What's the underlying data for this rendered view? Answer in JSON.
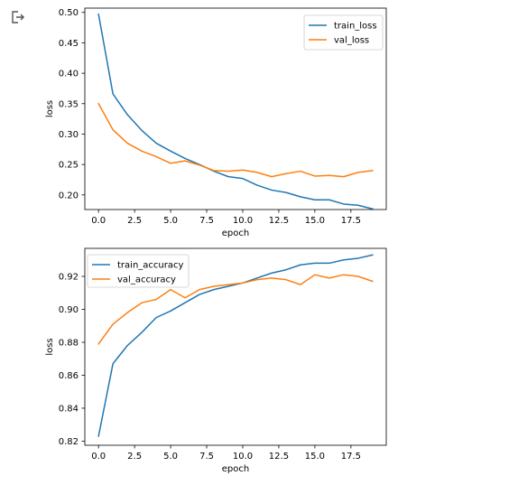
{
  "cell": {
    "output_icon": "output-prompt-icon"
  },
  "colors": {
    "train": "#1f77b4",
    "val": "#ff7f0e"
  },
  "chart_data": [
    {
      "type": "line",
      "xlabel": "epoch",
      "ylabel": "loss",
      "xlim": [
        -0.95,
        19.95
      ],
      "ylim": [
        0.176,
        0.507
      ],
      "xticks": [
        0.0,
        2.5,
        5.0,
        7.5,
        10.0,
        12.5,
        15.0,
        17.5
      ],
      "xtick_labels": [
        "0.0",
        "2.5",
        "5.0",
        "7.5",
        "10.0",
        "12.5",
        "15.0",
        "17.5"
      ],
      "yticks": [
        0.2,
        0.25,
        0.3,
        0.35,
        0.4,
        0.45,
        0.5
      ],
      "ytick_labels": [
        "0.20",
        "0.25",
        "0.30",
        "0.35",
        "0.40",
        "0.45",
        "0.50"
      ],
      "legend_position": "upper right",
      "x": [
        0,
        1,
        2,
        3,
        4,
        5,
        6,
        7,
        8,
        9,
        10,
        11,
        12,
        13,
        14,
        15,
        16,
        17,
        18,
        19
      ],
      "series": [
        {
          "name": "train_loss",
          "color": "#1f77b4",
          "values": [
            0.497,
            0.366,
            0.332,
            0.306,
            0.285,
            0.272,
            0.26,
            0.25,
            0.239,
            0.23,
            0.227,
            0.216,
            0.208,
            0.204,
            0.197,
            0.192,
            0.192,
            0.185,
            0.183,
            0.177
          ]
        },
        {
          "name": "val_loss",
          "color": "#ff7f0e",
          "values": [
            0.35,
            0.307,
            0.285,
            0.272,
            0.263,
            0.252,
            0.256,
            0.249,
            0.24,
            0.239,
            0.241,
            0.237,
            0.23,
            0.235,
            0.239,
            0.231,
            0.232,
            0.23,
            0.237,
            0.24
          ]
        }
      ]
    },
    {
      "type": "line",
      "xlabel": "epoch",
      "ylabel": "loss",
      "xlim": [
        -0.95,
        19.95
      ],
      "ylim": [
        0.8175,
        0.937
      ],
      "xticks": [
        0.0,
        2.5,
        5.0,
        7.5,
        10.0,
        12.5,
        15.0,
        17.5
      ],
      "xtick_labels": [
        "0.0",
        "2.5",
        "5.0",
        "7.5",
        "10.0",
        "12.5",
        "15.0",
        "17.5"
      ],
      "yticks": [
        0.82,
        0.84,
        0.86,
        0.88,
        0.9,
        0.92
      ],
      "ytick_labels": [
        "0.82",
        "0.84",
        "0.86",
        "0.88",
        "0.90",
        "0.92"
      ],
      "legend_position": "upper left",
      "x": [
        0,
        1,
        2,
        3,
        4,
        5,
        6,
        7,
        8,
        9,
        10,
        11,
        12,
        13,
        14,
        15,
        16,
        17,
        18,
        19
      ],
      "series": [
        {
          "name": "train_accuracy",
          "color": "#1f77b4",
          "values": [
            0.823,
            0.867,
            0.878,
            0.886,
            0.895,
            0.899,
            0.904,
            0.909,
            0.912,
            0.914,
            0.916,
            0.919,
            0.922,
            0.924,
            0.927,
            0.928,
            0.928,
            0.93,
            0.931,
            0.933
          ]
        },
        {
          "name": "val_accuracy",
          "color": "#ff7f0e",
          "values": [
            0.879,
            0.891,
            0.898,
            0.904,
            0.906,
            0.912,
            0.907,
            0.912,
            0.914,
            0.915,
            0.916,
            0.918,
            0.919,
            0.918,
            0.915,
            0.921,
            0.919,
            0.921,
            0.92,
            0.917
          ]
        }
      ]
    }
  ]
}
